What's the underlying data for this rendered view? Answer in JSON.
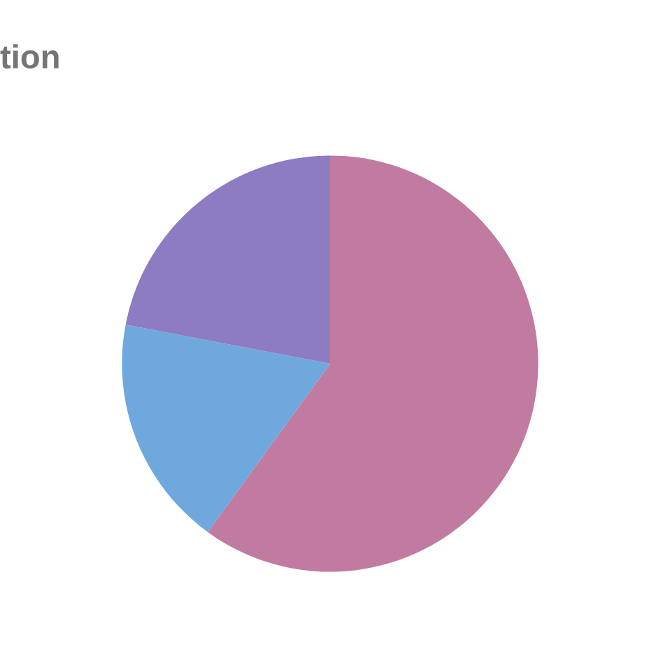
{
  "chart_data": {
    "type": "pie",
    "title": "tion",
    "categories": [
      null,
      null,
      null
    ],
    "values": [
      60,
      18,
      22
    ],
    "colors": [
      "#c27ba0",
      "#6fa8dc",
      "#8e7cc3"
    ]
  }
}
